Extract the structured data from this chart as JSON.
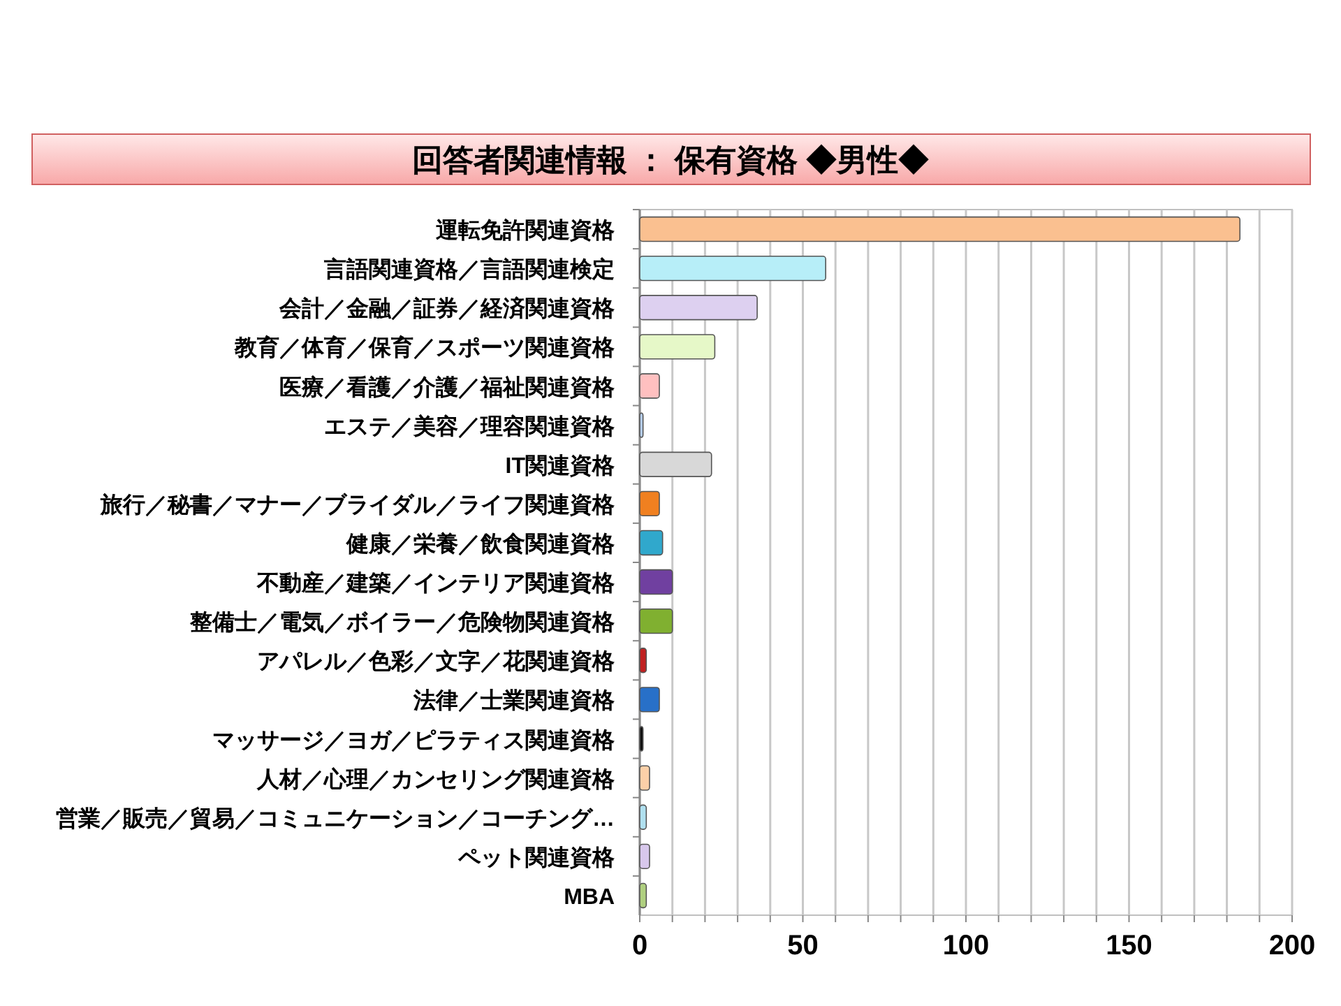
{
  "chart_data": {
    "type": "bar",
    "orientation": "horizontal",
    "title": "回答者関連情報 ： 保有資格 ◆男性◆",
    "categories": [
      "運転免許関連資格",
      "言語関連資格／言語関連検定",
      "会計／金融／証券／経済関連資格",
      "教育／体育／保育／スポーツ関連資格",
      "医療／看護／介護／福祉関連資格",
      "エステ／美容／理容関連資格",
      "IT関連資格",
      "旅行／秘書／マナー／ブライダル／ライフ関連資格",
      "健康／栄養／飲食関連資格",
      "不動産／建築／インテリア関連資格",
      "整備士／電気／ボイラー／危険物関連資格",
      "アパレル／色彩／文字／花関連資格",
      "法律／士業関連資格",
      "マッサージ／ヨガ／ピラティス関連資格",
      "人材／心理／カンセリング関連資格",
      "営業／販売／貿易／コミュニケーション／コーチング…",
      "ペット関連資格",
      "MBA"
    ],
    "values": [
      184,
      57,
      36,
      23,
      6,
      1,
      22,
      6,
      7,
      10,
      10,
      2,
      6,
      1,
      3,
      2,
      3,
      2
    ],
    "colors": [
      "#fac090",
      "#b7eef8",
      "#ddd0f0",
      "#e6f8c8",
      "#ffc0c0",
      "#b8d0f0",
      "#d8d8d8",
      "#f08020",
      "#30a8cc",
      "#7040a0",
      "#80b030",
      "#c02020",
      "#2870c8",
      "#101010",
      "#fcd0a8",
      "#b0e0f0",
      "#d8c8ec",
      "#b0d080"
    ],
    "xlim": [
      0,
      200
    ],
    "xticks": [
      0,
      {
        "value": 10,
        "label": null
      },
      {
        "value": 20,
        "label": null
      },
      {
        "value": 30,
        "label": null
      },
      {
        "value": 40,
        "label": null
      },
      50,
      {
        "value": 60,
        "label": null
      },
      {
        "value": 70,
        "label": null
      },
      {
        "value": 80,
        "label": null
      },
      {
        "value": 90,
        "label": null
      },
      100,
      {
        "value": 110,
        "label": null
      },
      {
        "value": 120,
        "label": null
      },
      {
        "value": 130,
        "label": null
      },
      {
        "value": 140,
        "label": null
      },
      150,
      {
        "value": 160,
        "label": null
      },
      {
        "value": 170,
        "label": null
      },
      {
        "value": 180,
        "label": null
      },
      {
        "value": 190,
        "label": null
      },
      200
    ],
    "grid": "x"
  }
}
